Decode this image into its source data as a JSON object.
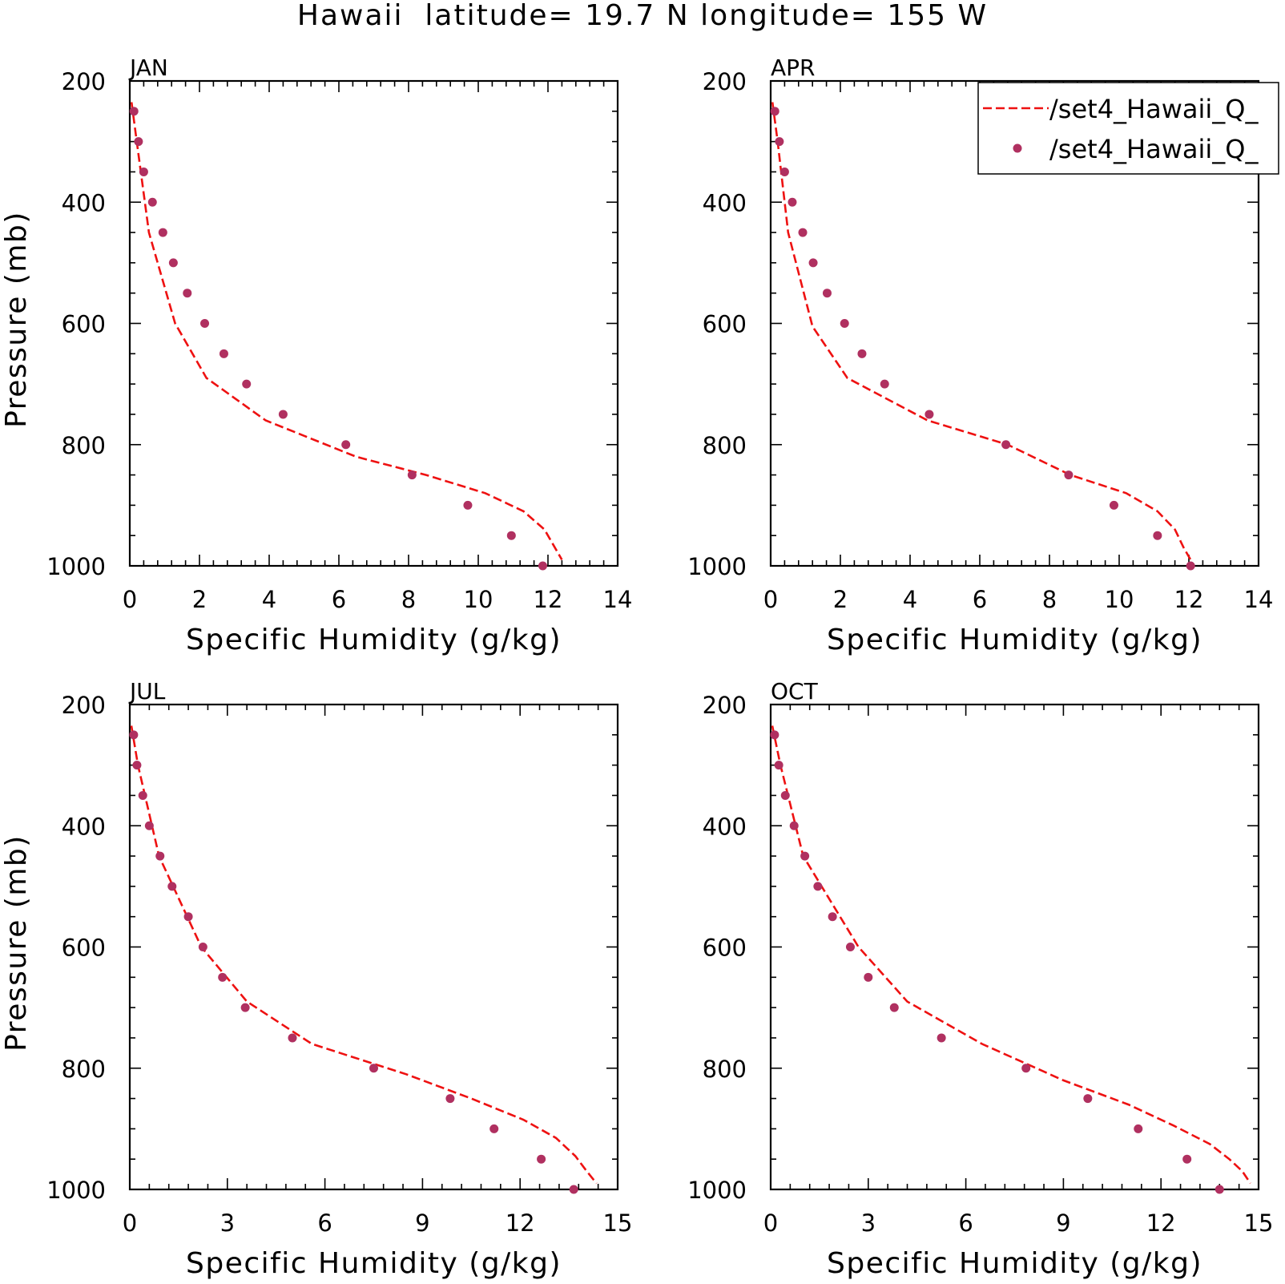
{
  "title": "Hawaii  latitude= 19.7 N longitude= 155 W",
  "legend": {
    "entries": [
      {
        "label": "/set4_Hawaii_Q_",
        "style": "dashed-line",
        "color": "#ee1111"
      },
      {
        "label": "/set4_Hawaii_Q_",
        "style": "dot",
        "color": "#b03060"
      }
    ]
  },
  "colors": {
    "line": "#ee1111",
    "dots": "#b03060",
    "axes": "#000000"
  },
  "chart_data": [
    {
      "type": "line",
      "panel": "JAN",
      "xlabel": "Specific Humidity (g/kg)",
      "ylabel": "Pressure (mb)",
      "xlim": [
        0,
        14
      ],
      "ylim": [
        200,
        1000
      ],
      "y_inverted": true,
      "xticks": [
        0,
        2,
        4,
        6,
        8,
        10,
        12,
        14
      ],
      "yticks": [
        200,
        400,
        600,
        800,
        1000
      ],
      "series": [
        {
          "style": "dashed-line",
          "points": [
            [
              0.05,
              235
            ],
            [
              0.2,
              300
            ],
            [
              0.55,
              450
            ],
            [
              1.3,
              600
            ],
            [
              2.2,
              690
            ],
            [
              3.9,
              760
            ],
            [
              6.5,
              820
            ],
            [
              8.5,
              850
            ],
            [
              10.2,
              880
            ],
            [
              11.3,
              910
            ],
            [
              11.9,
              940
            ],
            [
              12.2,
              970
            ],
            [
              12.4,
              990
            ]
          ]
        },
        {
          "style": "dot",
          "points": [
            [
              0.12,
              250
            ],
            [
              0.25,
              300
            ],
            [
              0.4,
              350
            ],
            [
              0.65,
              400
            ],
            [
              0.95,
              450
            ],
            [
              1.25,
              500
            ],
            [
              1.65,
              550
            ],
            [
              2.15,
              600
            ],
            [
              2.7,
              650
            ],
            [
              3.35,
              700
            ],
            [
              4.4,
              750
            ],
            [
              6.2,
              800
            ],
            [
              8.1,
              850
            ],
            [
              9.7,
              900
            ],
            [
              10.95,
              950
            ],
            [
              11.85,
              1000
            ]
          ]
        }
      ]
    },
    {
      "type": "line",
      "panel": "APR",
      "xlabel": "Specific Humidity (g/kg)",
      "ylabel": "",
      "xlim": [
        0,
        14
      ],
      "ylim": [
        200,
        1000
      ],
      "y_inverted": true,
      "xticks": [
        0,
        2,
        4,
        6,
        8,
        10,
        12,
        14
      ],
      "yticks": [
        200,
        400,
        600,
        800,
        1000
      ],
      "series": [
        {
          "style": "dashed-line",
          "points": [
            [
              0.05,
              235
            ],
            [
              0.2,
              300
            ],
            [
              0.5,
              450
            ],
            [
              1.2,
              605
            ],
            [
              2.2,
              690
            ],
            [
              4.5,
              760
            ],
            [
              6.8,
              800
            ],
            [
              8.6,
              850
            ],
            [
              10.2,
              880
            ],
            [
              11.1,
              910
            ],
            [
              11.6,
              940
            ],
            [
              11.85,
              970
            ],
            [
              12.05,
              990
            ]
          ]
        },
        {
          "style": "dot",
          "points": [
            [
              0.12,
              250
            ],
            [
              0.25,
              300
            ],
            [
              0.4,
              350
            ],
            [
              0.62,
              400
            ],
            [
              0.92,
              450
            ],
            [
              1.22,
              500
            ],
            [
              1.62,
              550
            ],
            [
              2.12,
              600
            ],
            [
              2.62,
              650
            ],
            [
              3.27,
              700
            ],
            [
              4.55,
              750
            ],
            [
              6.75,
              800
            ],
            [
              8.55,
              850
            ],
            [
              9.85,
              900
            ],
            [
              11.1,
              950
            ],
            [
              12.05,
              1000
            ]
          ]
        }
      ]
    },
    {
      "type": "line",
      "panel": "JUL",
      "xlabel": "Specific Humidity (g/kg)",
      "ylabel": "Pressure (mb)",
      "xlim": [
        0,
        15
      ],
      "ylim": [
        200,
        1000
      ],
      "y_inverted": true,
      "xticks": [
        0,
        3,
        6,
        9,
        12,
        15
      ],
      "yticks": [
        200,
        400,
        600,
        800,
        1000
      ],
      "series": [
        {
          "style": "dashed-line",
          "points": [
            [
              0.05,
              235
            ],
            [
              0.25,
              300
            ],
            [
              0.9,
              450
            ],
            [
              2.2,
              600
            ],
            [
              3.6,
              690
            ],
            [
              5.6,
              760
            ],
            [
              8.5,
              810
            ],
            [
              10.5,
              850
            ],
            [
              12.1,
              885
            ],
            [
              13.1,
              915
            ],
            [
              13.7,
              945
            ],
            [
              14.05,
              970
            ],
            [
              14.35,
              990
            ]
          ]
        },
        {
          "style": "dot",
          "points": [
            [
              0.12,
              250
            ],
            [
              0.22,
              300
            ],
            [
              0.4,
              350
            ],
            [
              0.6,
              400
            ],
            [
              0.93,
              450
            ],
            [
              1.3,
              500
            ],
            [
              1.8,
              550
            ],
            [
              2.25,
              600
            ],
            [
              2.85,
              650
            ],
            [
              3.55,
              700
            ],
            [
              5.0,
              750
            ],
            [
              7.5,
              800
            ],
            [
              9.85,
              850
            ],
            [
              11.2,
              900
            ],
            [
              12.65,
              950
            ],
            [
              13.65,
              1000
            ]
          ]
        }
      ]
    },
    {
      "type": "line",
      "panel": "OCT",
      "xlabel": "Specific Humidity (g/kg)",
      "ylabel": "",
      "xlim": [
        0,
        15
      ],
      "ylim": [
        200,
        1000
      ],
      "y_inverted": true,
      "xticks": [
        0,
        3,
        6,
        9,
        12,
        15
      ],
      "yticks": [
        200,
        400,
        600,
        800,
        1000
      ],
      "series": [
        {
          "style": "dashed-line",
          "points": [
            [
              0.05,
              235
            ],
            [
              0.3,
              300
            ],
            [
              1.0,
              450
            ],
            [
              2.7,
              600
            ],
            [
              4.2,
              690
            ],
            [
              6.5,
              760
            ],
            [
              9.0,
              820
            ],
            [
              11.0,
              860
            ],
            [
              12.4,
              895
            ],
            [
              13.5,
              925
            ],
            [
              14.1,
              950
            ],
            [
              14.5,
              970
            ],
            [
              14.75,
              990
            ]
          ]
        },
        {
          "style": "dot",
          "points": [
            [
              0.12,
              250
            ],
            [
              0.25,
              300
            ],
            [
              0.45,
              350
            ],
            [
              0.72,
              400
            ],
            [
              1.05,
              450
            ],
            [
              1.45,
              500
            ],
            [
              1.9,
              550
            ],
            [
              2.45,
              600
            ],
            [
              3.0,
              650
            ],
            [
              3.8,
              700
            ],
            [
              5.25,
              750
            ],
            [
              7.85,
              800
            ],
            [
              9.75,
              850
            ],
            [
              11.3,
              900
            ],
            [
              12.8,
              950
            ],
            [
              13.8,
              1000
            ]
          ]
        }
      ]
    }
  ]
}
